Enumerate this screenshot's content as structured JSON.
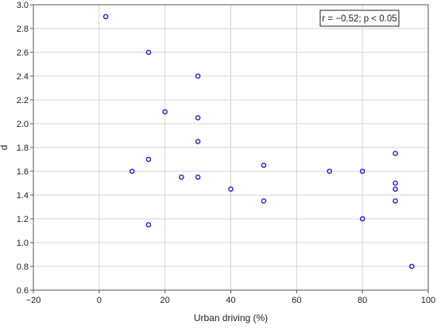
{
  "chart_data": {
    "type": "scatter",
    "title": "",
    "xlabel": "Urban driving (%)",
    "ylabel": "d",
    "xlim": [
      -20,
      100
    ],
    "ylim": [
      0.6,
      3.0
    ],
    "x_ticks": [
      -20,
      0,
      20,
      40,
      60,
      80,
      100
    ],
    "y_ticks": [
      0.6,
      0.8,
      1.0,
      1.2,
      1.4,
      1.6,
      1.8,
      2.0,
      2.2,
      2.4,
      2.6,
      2.8,
      3.0
    ],
    "x_tick_labels": [
      "−20",
      "0",
      "20",
      "40",
      "60",
      "80",
      "100"
    ],
    "y_tick_labels": [
      "0.6",
      "0.8",
      "1.0",
      "1.2",
      "1.4",
      "1.6",
      "1.8",
      "2.0",
      "2.2",
      "2.4",
      "2.6",
      "2.8",
      "3.0"
    ],
    "grid": true,
    "annotation": {
      "text": "r = −0.52; p < 0.05",
      "placement": "top-right"
    },
    "marker_color": "#1f1fc8",
    "grid_color": "#d4d4d4",
    "series": [
      {
        "points": [
          {
            "x": 2,
            "y": 2.9
          },
          {
            "x": 15,
            "y": 2.6
          },
          {
            "x": 30,
            "y": 2.4
          },
          {
            "x": 20,
            "y": 2.1
          },
          {
            "x": 30,
            "y": 2.05
          },
          {
            "x": 30,
            "y": 1.85
          },
          {
            "x": 15,
            "y": 1.7
          },
          {
            "x": 10,
            "y": 1.6
          },
          {
            "x": 25,
            "y": 1.55
          },
          {
            "x": 30,
            "y": 1.55
          },
          {
            "x": 50,
            "y": 1.65
          },
          {
            "x": 40,
            "y": 1.45
          },
          {
            "x": 50,
            "y": 1.35
          },
          {
            "x": 15,
            "y": 1.15
          },
          {
            "x": 70,
            "y": 1.6
          },
          {
            "x": 80,
            "y": 1.6
          },
          {
            "x": 80,
            "y": 1.2
          },
          {
            "x": 90,
            "y": 1.75
          },
          {
            "x": 90,
            "y": 1.5
          },
          {
            "x": 90,
            "y": 1.45
          },
          {
            "x": 90,
            "y": 1.35
          },
          {
            "x": 95,
            "y": 0.8
          }
        ]
      }
    ]
  }
}
